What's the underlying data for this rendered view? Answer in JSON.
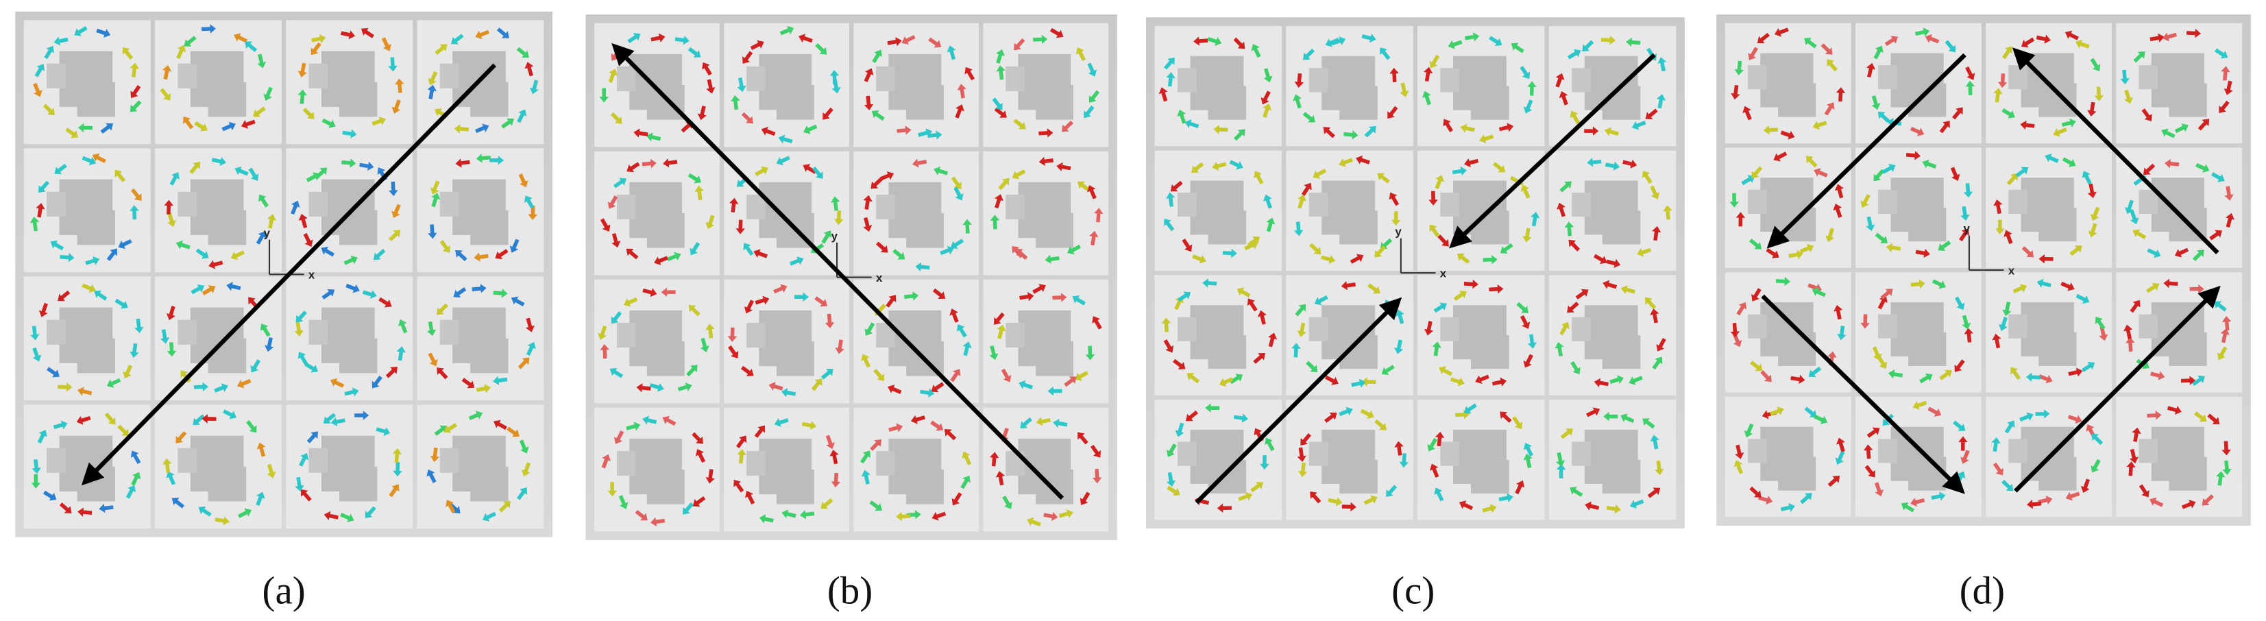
{
  "panels": [
    {
      "label": "(a)",
      "axis_x": "x",
      "axis_y": "y"
    },
    {
      "label": "(b)",
      "axis_x": "x",
      "axis_y": "y"
    },
    {
      "label": "(c)",
      "axis_x": "x",
      "axis_y": "y"
    },
    {
      "label": "(d)",
      "axis_x": "x",
      "axis_y": "y"
    }
  ]
}
